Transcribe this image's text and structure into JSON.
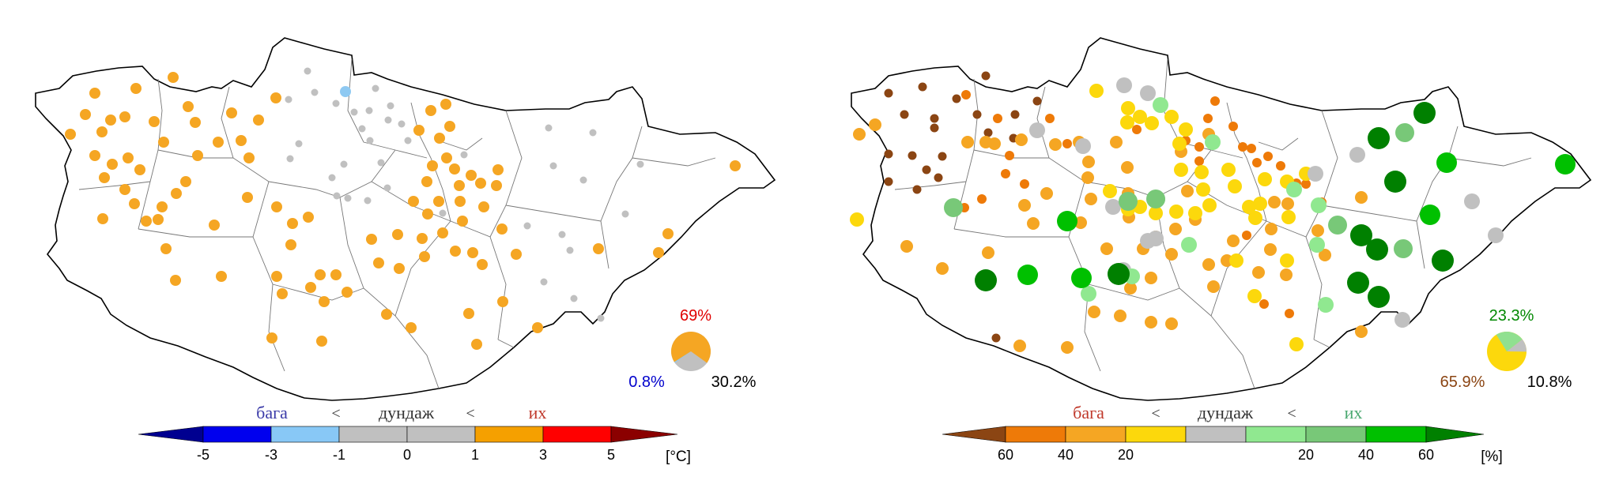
{
  "left_map": {
    "pie": {
      "pct_above": "69%",
      "pct_below": "0.8%",
      "pct_normal": "30.2%",
      "fractions": {
        "above": 0.69,
        "normal": 0.302,
        "below": 0.008
      },
      "colors": {
        "above": "#f5a623",
        "normal": "#c0c0c0",
        "below": "#8ec9f2"
      }
    },
    "legend": {
      "word_low": "бага",
      "sep1": "<",
      "word_normal": "дундаж",
      "sep2": "<",
      "word_high": "их",
      "ticks": [
        "-5",
        "-3",
        "-1",
        "0",
        "1",
        "3",
        "5"
      ],
      "unit": "[°C]",
      "colors": [
        "#000090",
        "#0000ee",
        "#88c8f6",
        "#c0c0c0",
        "#c0c0c0",
        "#f5a000",
        "#ff0000",
        "#8b0000"
      ]
    },
    "station_counts": {
      "orange": 87,
      "gray": 36,
      "blue": 1
    }
  },
  "right_map": {
    "pie": {
      "pct_wet": "23.3%",
      "pct_dry": "65.9%",
      "pct_normal": "10.8%",
      "fractions": {
        "dry": 0.659,
        "normal": 0.108,
        "wet": 0.233
      },
      "colors": {
        "dry": "#fcd80c",
        "normal": "#c0c0c0",
        "wet": "#90e090"
      }
    },
    "legend": {
      "word_low": "бага",
      "sep1": "<",
      "word_normal": "дундаж",
      "sep2": "<",
      "word_high": "их",
      "ticks": [
        "60",
        "40",
        "20",
        "20",
        "40",
        "60"
      ],
      "unit": "[%]",
      "colors": [
        "#8b4513",
        "#ee7a08",
        "#f5a623",
        "#fcd80c",
        "#c0c0c0",
        "#90e890",
        "#78c878",
        "#00c000",
        "#008000"
      ]
    }
  },
  "colors": {
    "label_red": "#e00000",
    "label_blue": "#0000cc",
    "label_green": "#008800",
    "label_brown": "#8b4513",
    "word_low_left": "#3a3aa8",
    "word_low_right": "#c0392b",
    "word_high_left": "#c0392b",
    "word_high_right": "#4aa870"
  }
}
